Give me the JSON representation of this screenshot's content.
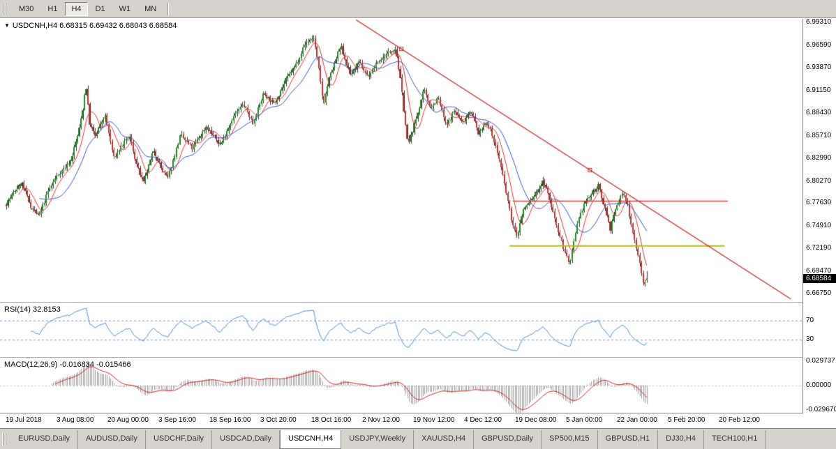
{
  "toolbar": {
    "timeframes": [
      "M30",
      "H1",
      "H4",
      "D1",
      "W1",
      "MN"
    ],
    "active": "H4"
  },
  "main_pane": {
    "symbol_marker": "▼",
    "symbol": "USDCNH,H4",
    "ohlc": "6.68315 6.69432 6.68043 6.68584",
    "price_axis_labels": [
      "6.99310",
      "6.96590",
      "6.93870",
      "6.91150",
      "6.88430",
      "6.85710",
      "6.82990",
      "6.80270",
      "6.77630",
      "6.74910",
      "6.72190",
      "6.69470",
      "6.66750"
    ],
    "current_price": "6.68584"
  },
  "rsi_pane": {
    "label": "RSI(14) 32.8153",
    "level_labels": [
      "70",
      "30"
    ]
  },
  "macd_pane": {
    "label": "MACD(12,26,9) -0.016834 -0.015466",
    "axis_labels": [
      "0.029737",
      "0.00000",
      "-0.029670"
    ]
  },
  "time_axis": {
    "labels": [
      "19 Jul 2018",
      "3 Aug 08:00",
      "20 Aug 00:00",
      "3 Sep 16:00",
      "18 Sep 16:00",
      "3 Oct 20:00",
      "18 Oct 16:00",
      "2 Nov 12:00",
      "19 Nov 12:00",
      "4 Dec 12:00",
      "19 Dec 08:00",
      "5 Jan 00:00",
      "22 Jan 00:00",
      "5 Feb 20:00",
      "20 Feb 12:00"
    ]
  },
  "tabs": {
    "items": [
      "EURUSD,Daily",
      "AUDUSD,Daily",
      "USDCHF,Daily",
      "USDCAD,Daily",
      "USDCNH,H4",
      "USDJPY,Weekly",
      "XAUUSD,H4",
      "GBPUSD,Daily",
      "SP500,M15",
      "GBPUSD,H1",
      "DJ30,H4",
      "TECH100,H1"
    ],
    "active": "USDCNH,H4"
  },
  "chart_data": {
    "type": "candlestick",
    "symbol": "USDCNH",
    "timeframe": "H4",
    "title": "USDCNH,H4",
    "last_candle": {
      "o": 6.68315,
      "h": 6.69432,
      "l": 6.68043,
      "c": 6.68584
    },
    "price_range": {
      "top": 6.9973,
      "bottom": 6.6575
    },
    "num_candles": 370,
    "seed": 7,
    "volatility": 0.005,
    "path": [
      [
        0.0,
        6.775
      ],
      [
        0.012,
        6.79
      ],
      [
        0.024,
        6.8
      ],
      [
        0.038,
        6.772
      ],
      [
        0.051,
        6.76
      ],
      [
        0.065,
        6.79
      ],
      [
        0.078,
        6.808
      ],
      [
        0.1,
        6.826
      ],
      [
        0.113,
        6.862
      ],
      [
        0.12,
        6.893
      ],
      [
        0.124,
        6.92
      ],
      [
        0.13,
        6.872
      ],
      [
        0.138,
        6.856
      ],
      [
        0.154,
        6.882
      ],
      [
        0.168,
        6.83
      ],
      [
        0.18,
        6.845
      ],
      [
        0.192,
        6.856
      ],
      [
        0.205,
        6.818
      ],
      [
        0.214,
        6.8
      ],
      [
        0.23,
        6.84
      ],
      [
        0.243,
        6.815
      ],
      [
        0.252,
        6.806
      ],
      [
        0.272,
        6.858
      ],
      [
        0.29,
        6.842
      ],
      [
        0.312,
        6.868
      ],
      [
        0.334,
        6.846
      ],
      [
        0.353,
        6.878
      ],
      [
        0.37,
        6.895
      ],
      [
        0.385,
        6.872
      ],
      [
        0.402,
        6.908
      ],
      [
        0.418,
        6.895
      ],
      [
        0.437,
        6.925
      ],
      [
        0.452,
        6.942
      ],
      [
        0.467,
        6.968
      ],
      [
        0.48,
        6.975
      ],
      [
        0.488,
        6.935
      ],
      [
        0.495,
        6.895
      ],
      [
        0.504,
        6.925
      ],
      [
        0.522,
        6.965
      ],
      [
        0.537,
        6.93
      ],
      [
        0.551,
        6.945
      ],
      [
        0.565,
        6.928
      ],
      [
        0.58,
        6.945
      ],
      [
        0.598,
        6.958
      ],
      [
        0.608,
        6.962
      ],
      [
        0.616,
        6.92
      ],
      [
        0.627,
        6.845
      ],
      [
        0.64,
        6.878
      ],
      [
        0.652,
        6.912
      ],
      [
        0.663,
        6.89
      ],
      [
        0.674,
        6.903
      ],
      [
        0.687,
        6.868
      ],
      [
        0.7,
        6.888
      ],
      [
        0.712,
        6.872
      ],
      [
        0.725,
        6.888
      ],
      [
        0.738,
        6.858
      ],
      [
        0.749,
        6.875
      ],
      [
        0.76,
        6.856
      ],
      [
        0.77,
        6.828
      ],
      [
        0.78,
        6.79
      ],
      [
        0.79,
        6.752
      ],
      [
        0.797,
        6.735
      ],
      [
        0.807,
        6.768
      ],
      [
        0.82,
        6.78
      ],
      [
        0.83,
        6.792
      ],
      [
        0.839,
        6.803
      ],
      [
        0.85,
        6.775
      ],
      [
        0.861,
        6.745
      ],
      [
        0.872,
        6.718
      ],
      [
        0.88,
        6.703
      ],
      [
        0.891,
        6.748
      ],
      [
        0.902,
        6.775
      ],
      [
        0.915,
        6.788
      ],
      [
        0.924,
        6.797
      ],
      [
        0.935,
        6.77
      ],
      [
        0.943,
        6.745
      ],
      [
        0.952,
        6.77
      ],
      [
        0.962,
        6.788
      ],
      [
        0.97,
        6.775
      ],
      [
        0.978,
        6.742
      ],
      [
        0.987,
        6.712
      ],
      [
        0.992,
        6.69
      ],
      [
        0.997,
        6.676
      ],
      [
        1.0,
        6.686
      ]
    ],
    "colors": {
      "up": "#1e8c1e",
      "down": "#c03030",
      "wick": "#333333",
      "bg": "#ffffff"
    },
    "overlays": {
      "ma_fast": {
        "period": 8,
        "color": "#dd3333"
      },
      "ma_slow": {
        "period": 20,
        "color": "#3355bb"
      },
      "trendline": {
        "t1": 0.546,
        "price1": 6.996,
        "t2": 1.223,
        "price2": 6.661,
        "color": "#cc2222",
        "anchors": [
          0.104,
          0.538
        ]
      },
      "hline_red": {
        "price": 6.779,
        "t1": 0.79,
        "t2": 1.125,
        "color": "#dd2222"
      },
      "hline_yellow": {
        "price": 6.725,
        "t1": 0.785,
        "t2": 1.12,
        "color": "#b4bd00"
      }
    },
    "rsi": {
      "period": 14,
      "value": 32.8153,
      "color": "#4a90d2",
      "levels": [
        70,
        30
      ],
      "level_color": "#8888cc"
    },
    "macd": {
      "fast": 12,
      "slow": 26,
      "signal": 9,
      "macd_value": -0.016834,
      "signal_value": -0.015466,
      "hist_color": "#9e9e9e",
      "signal_color": "#cc2222",
      "range": [
        -0.02967,
        0.029737
      ]
    }
  }
}
